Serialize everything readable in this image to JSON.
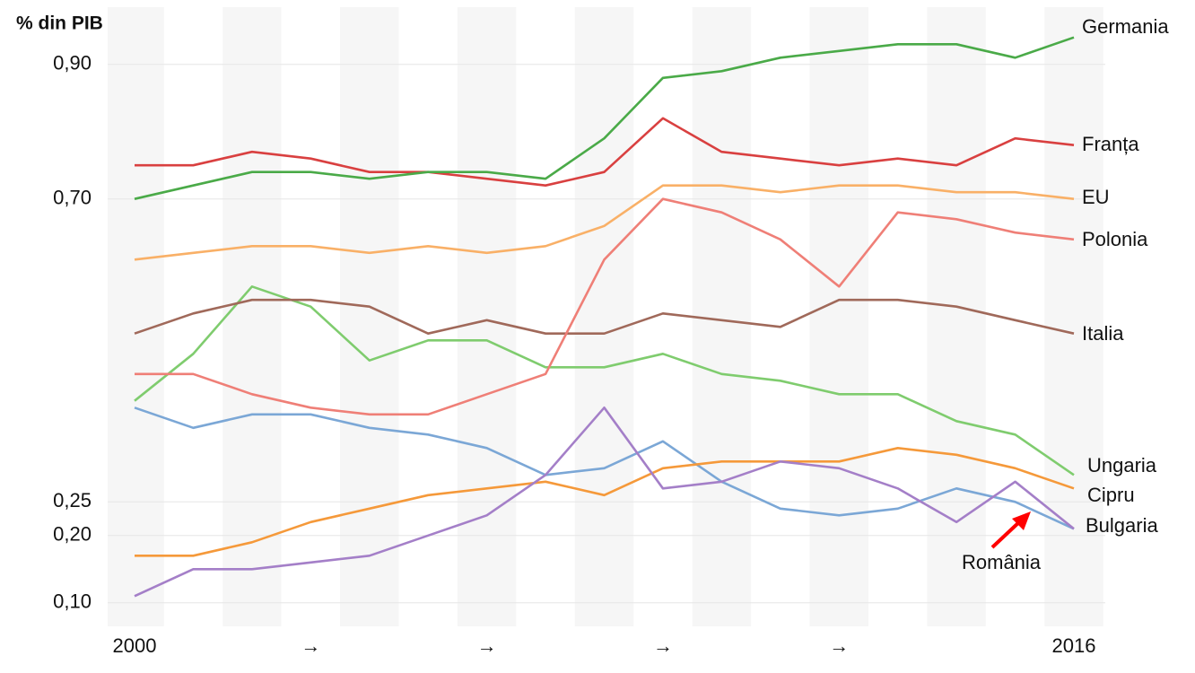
{
  "chart_data": {
    "type": "line",
    "y_label": "% din PIB",
    "x": [
      2000,
      2001,
      2002,
      2003,
      2004,
      2005,
      2006,
      2007,
      2008,
      2009,
      2010,
      2011,
      2012,
      2013,
      2014,
      2015,
      2016
    ],
    "xlim": [
      2000,
      2016
    ],
    "xticks": [
      2000,
      {
        "value": 2003,
        "label": "→"
      },
      {
        "value": 2006,
        "label": "→"
      },
      {
        "value": 2009,
        "label": "→"
      },
      {
        "value": 2012,
        "label": "→"
      },
      2016
    ],
    "ylim": [
      0.065,
      0.985
    ],
    "yticks": [
      {
        "value": 0.1,
        "label": "0,10"
      },
      {
        "value": 0.2,
        "label": "0,20"
      },
      {
        "value": 0.25,
        "label": "0,25"
      },
      {
        "value": 0.7,
        "label": "0,70"
      },
      {
        "value": 0.9,
        "label": "0,90"
      }
    ],
    "grid": true,
    "series": [
      {
        "name": "Ungaria",
        "color": "#7fcc6e",
        "values": [
          0.4,
          0.47,
          0.57,
          0.54,
          0.46,
          0.49,
          0.49,
          0.45,
          0.45,
          0.47,
          0.44,
          0.43,
          0.41,
          0.41,
          0.37,
          0.35,
          0.29
        ]
      },
      {
        "name": "Bulgaria",
        "color": "#7ba7d6",
        "values": [
          0.39,
          0.36,
          0.38,
          0.38,
          0.36,
          0.35,
          0.33,
          0.29,
          0.3,
          0.34,
          0.28,
          0.24,
          0.23,
          0.24,
          0.27,
          0.25,
          0.21
        ]
      },
      {
        "name": "Cipru",
        "color": "#f5993a",
        "values": [
          0.17,
          0.17,
          0.19,
          0.22,
          0.24,
          0.26,
          0.27,
          0.28,
          0.26,
          0.3,
          0.31,
          0.31,
          0.31,
          0.33,
          0.32,
          0.3,
          0.27
        ]
      },
      {
        "name": "România",
        "color": "#a47fc8",
        "values": [
          0.11,
          0.15,
          0.15,
          0.16,
          0.17,
          0.2,
          0.23,
          0.29,
          0.39,
          0.27,
          0.28,
          0.31,
          0.3,
          0.27,
          0.22,
          0.28,
          0.21
        ]
      },
      {
        "name": "Italia",
        "color": "#a0695a",
        "values": [
          0.5,
          0.53,
          0.55,
          0.55,
          0.54,
          0.5,
          0.52,
          0.5,
          0.5,
          0.53,
          0.52,
          0.51,
          0.55,
          0.55,
          0.54,
          0.52,
          0.5
        ]
      },
      {
        "name": "Polonia",
        "color": "#ef7f77",
        "values": [
          0.44,
          0.44,
          0.41,
          0.39,
          0.38,
          0.38,
          0.41,
          0.44,
          0.61,
          0.7,
          0.68,
          0.64,
          0.57,
          0.68,
          0.67,
          0.65,
          0.64
        ]
      },
      {
        "name": "EU",
        "color": "#f9b067",
        "values": [
          0.61,
          0.62,
          0.63,
          0.63,
          0.62,
          0.63,
          0.62,
          0.63,
          0.66,
          0.72,
          0.72,
          0.71,
          0.72,
          0.72,
          0.71,
          0.71,
          0.7
        ]
      },
      {
        "name": "Franța",
        "color": "#d94040",
        "values": [
          0.75,
          0.75,
          0.77,
          0.76,
          0.74,
          0.74,
          0.73,
          0.72,
          0.74,
          0.82,
          0.77,
          0.76,
          0.75,
          0.76,
          0.75,
          0.79,
          0.78
        ]
      },
      {
        "name": "Germania",
        "color": "#4aaa48",
        "values": [
          0.7,
          0.72,
          0.74,
          0.74,
          0.73,
          0.74,
          0.74,
          0.73,
          0.79,
          0.88,
          0.89,
          0.91,
          0.92,
          0.93,
          0.93,
          0.91,
          0.94
        ]
      }
    ]
  }
}
